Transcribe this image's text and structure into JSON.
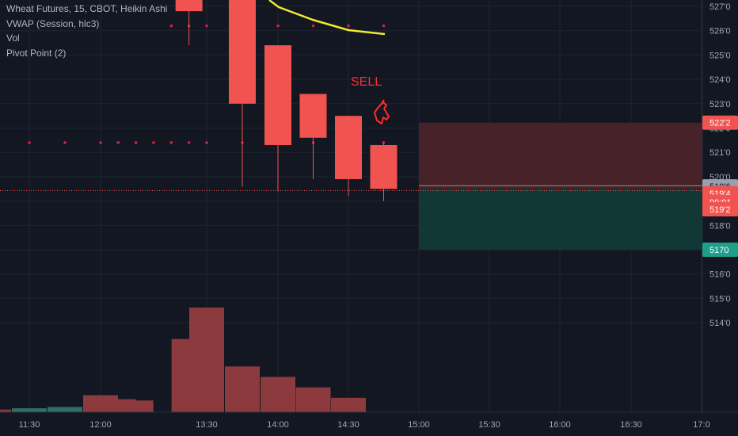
{
  "legend": {
    "symbol": "Wheat Futures, 15, CBOT, Heikin Ashi",
    "vwap": "VWAP (Session, hlc3)",
    "vol": "Vol",
    "pivot": "Pivot Point (2)"
  },
  "annotation": {
    "text": "SELL",
    "color": "#ff2b2b"
  },
  "colors": {
    "background": "#131722",
    "grid": "#1f2431",
    "candle_down": "#f05350",
    "volume_down": "#8c3a3e",
    "volume_up": "#2f6f66",
    "vwap": "#f0e930",
    "pivot": "#d7203f",
    "sl_zone": "#4a2329",
    "tp_zone": "#113a36",
    "axis_text": "#a3a6af"
  },
  "chart_data": {
    "type": "candlestick",
    "price_ylim": [
      5132,
      5273
    ],
    "x_ticks": [
      "11:30",
      "12:00",
      "13:30",
      "14:00",
      "14:30",
      "15:00",
      "15:30",
      "16:00",
      "16:30",
      "17:0"
    ],
    "y_ticks": [
      "527'0",
      "526'0",
      "525'0",
      "524'0",
      "523'0",
      "522'0",
      "521'0",
      "520'0",
      "519'0",
      "518'0",
      "517'0",
      "516'0",
      "515'0",
      "514'0"
    ],
    "candles": [
      {
        "t": "13:15",
        "open": 5273,
        "high": 5273,
        "low": 5254,
        "close": 5268
      },
      {
        "t": "13:45",
        "open": 5273,
        "high": 5273,
        "low": 5196,
        "close": 5230
      },
      {
        "t": "14:00",
        "open": 5254,
        "high": 5254,
        "low": 5194,
        "close": 5213
      },
      {
        "t": "14:15",
        "open": 5234,
        "high": 5234,
        "low": 5199,
        "close": 5216
      },
      {
        "t": "14:30",
        "open": 5225,
        "high": 5225,
        "low": 5192,
        "close": 5199
      },
      {
        "t": "14:45",
        "open": 5213,
        "high": 5214,
        "low": 5190,
        "close": 5195
      }
    ],
    "vwap": [
      {
        "t": "14:00",
        "value": 5273
      },
      {
        "t": "14:00",
        "value": 5270
      },
      {
        "t": "14:15",
        "value": 5268
      },
      {
        "t": "14:30",
        "value": 5262
      },
      {
        "t": "14:45",
        "value": 5260
      }
    ],
    "pivot_levels": [
      {
        "value": 5262,
        "times": [
          "13:00",
          "13:15",
          "13:30",
          "13:45",
          "14:00",
          "14:15",
          "14:30",
          "14:45"
        ]
      },
      {
        "value": 5214,
        "times": [
          "11:30",
          "11:45",
          "12:00",
          "12:15",
          "12:30",
          "12:45",
          "13:00",
          "13:15",
          "13:30",
          "13:45",
          "14:00",
          "14:15",
          "14:30",
          "14:45"
        ]
      }
    ],
    "volume": [
      {
        "t": "11:15",
        "value": 2,
        "dir": "down"
      },
      {
        "t": "11:30",
        "value": 3,
        "dir": "up"
      },
      {
        "t": "11:45",
        "value": 4,
        "dir": "up"
      },
      {
        "t": "12:00",
        "value": 13,
        "dir": "down"
      },
      {
        "t": "12:15",
        "value": 10,
        "dir": "down"
      },
      {
        "t": "12:30",
        "value": 9,
        "dir": "down"
      },
      {
        "t": "13:15",
        "value": 56,
        "dir": "down"
      },
      {
        "t": "13:30",
        "value": 80,
        "dir": "down"
      },
      {
        "t": "13:45",
        "value": 35,
        "dir": "down"
      },
      {
        "t": "14:00",
        "value": 27,
        "dir": "down"
      },
      {
        "t": "14:15",
        "value": 19,
        "dir": "down"
      },
      {
        "t": "14:30",
        "value": 11,
        "dir": "down"
      }
    ],
    "position": {
      "entry": 5195,
      "stop": 5222.2,
      "target": 5170
    },
    "last_price_line": 5194.6,
    "price_labels": [
      {
        "text": "522'2",
        "value": 5222.2,
        "bg": "#f05350",
        "fg": "#ffffff"
      },
      {
        "text": "519'6",
        "value": 5196,
        "bg": "#9aa0ab",
        "fg": "#131722"
      },
      {
        "text": "519'4",
        "value": 5193.2,
        "bg": "#f05350",
        "fg": "#ffffff"
      },
      {
        "text": "00:01",
        "value": 5189.6,
        "bg": "#f05350",
        "fg": "#ffffff"
      },
      {
        "text": "519'2",
        "value": 5186.6,
        "bg": "#f05350",
        "fg": "#ffffff"
      },
      {
        "text": "5170",
        "value": 5170,
        "bg": "#1f9e8a",
        "fg": "#ffffff"
      }
    ]
  }
}
